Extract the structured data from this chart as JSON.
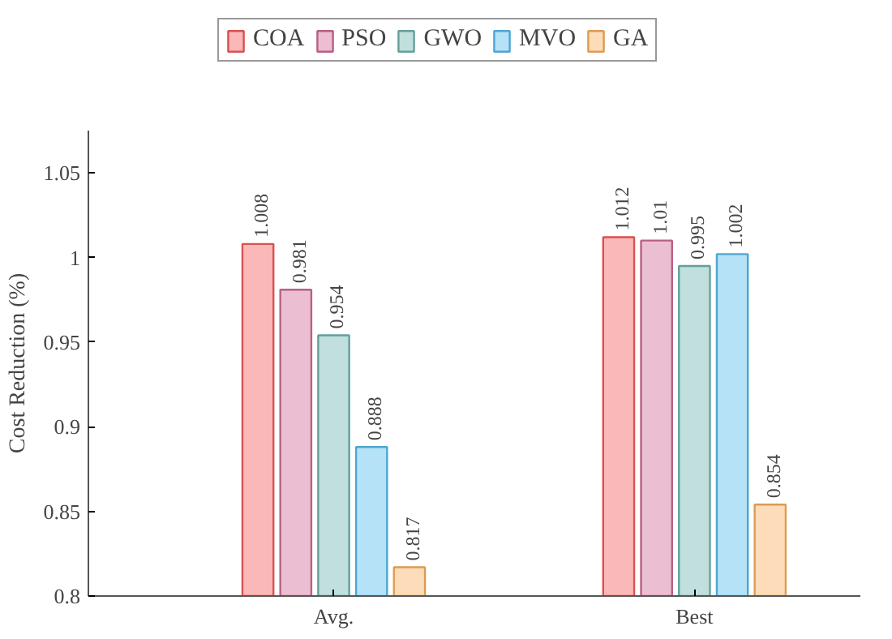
{
  "chart_data": {
    "type": "bar",
    "ylabel": "Cost Reduction (%)",
    "categories": [
      "Avg.",
      "Best"
    ],
    "series": [
      {
        "name": "COA",
        "color": "#fbb8b8",
        "values": [
          1.008,
          1.012
        ]
      },
      {
        "name": "PSO",
        "color": "#ebbfd1",
        "values": [
          0.981,
          1.01
        ]
      },
      {
        "name": "GWO",
        "color": "#c1dfdc",
        "values": [
          0.954,
          0.995
        ]
      },
      {
        "name": "MVO",
        "color": "#b6e2f7",
        "values": [
          0.888,
          1.002
        ]
      },
      {
        "name": "GA",
        "color": "#fddcb9",
        "values": [
          0.817,
          0.854
        ]
      }
    ],
    "ylim": [
      0.8,
      1.075
    ],
    "yticks": [
      0.8,
      0.85,
      0.9,
      0.95,
      1,
      1.05
    ],
    "data_labels": true,
    "legend": "top",
    "grid": false
  }
}
